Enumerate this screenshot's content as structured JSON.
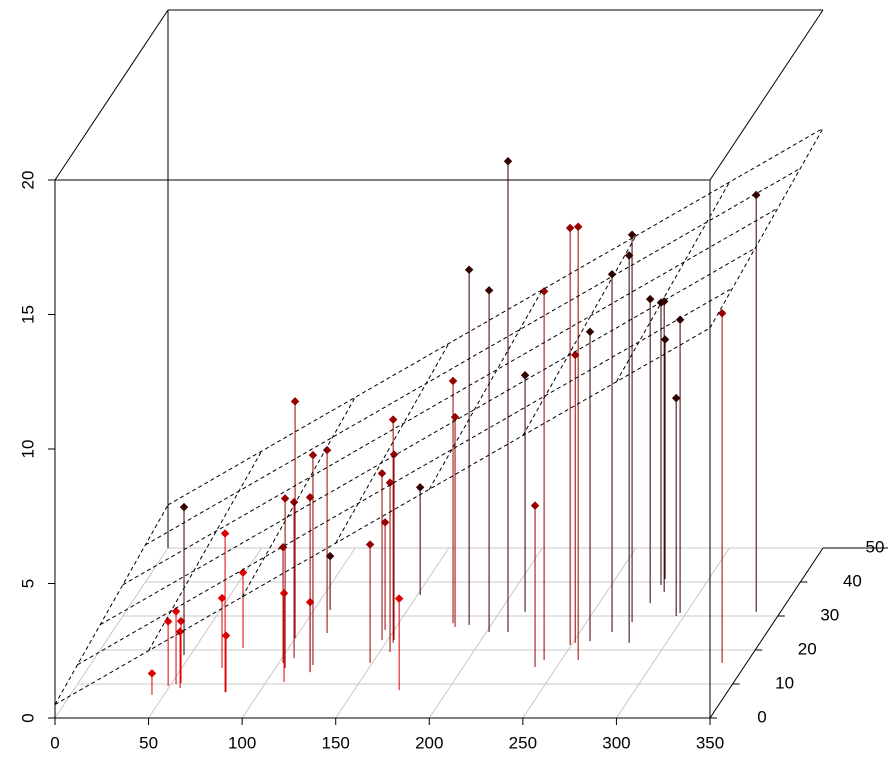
{
  "chart_data": {
    "type": "scatter3d",
    "x": [
      43.6,
      49.1,
      52.6,
      54.9,
      56.2,
      46.6,
      71.5,
      81.7,
      82.2,
      75.6,
      102.3,
      109.6,
      105.2,
      106.5,
      99.9,
      120.0,
      120.0,
      119.0,
      115.2,
      108.6,
      148.8,
      147.1,
      145.1,
      155.6,
      154.0,
      153.5,
      174.0,
      151.4,
      179.0,
      181.4,
      188.2,
      201.4,
      211.5,
      213.5,
      238.4,
      240.7,
      249.3,
      251.3,
      258.9,
      258.6,
      267.1,
      280.1,
      274.3,
      277.2,
      276.6,
      280.7,
      276.6,
      295.7,
      296.7,
      336.9,
      337.0
    ],
    "y": [
      6.8,
      9.4,
      10.0,
      10.3,
      8.8,
      18.5,
      14.7,
      7.6,
      7.6,
      20.6,
      16.2,
      10.6,
      14.7,
      17.6,
      23.5,
      13.5,
      13.5,
      15.6,
      25.0,
      31.8,
      16.2,
      22.9,
      25.9,
      19.4,
      22.1,
      22.9,
      8.2,
      36.2,
      27.9,
      26.8,
      27.4,
      25.3,
      25.3,
      31.2,
      15.0,
      17.1,
      21.5,
      22.1,
      17.1,
      22.6,
      25.3,
      22.1,
      28.2,
      33.8,
      39.1,
      37.1,
      40.9,
      30.0,
      30.9,
      16.2,
      31.2
    ],
    "z": [
      0.8,
      2.4,
      2.7,
      2.3,
      2.1,
      5.5,
      2.6,
      5.9,
      2.1,
      2.8,
      4.3,
      3.3,
      6.3,
      5.8,
      8.8,
      2.6,
      6.5,
      7.8,
      6.8,
      2.0,
      4.4,
      6.2,
      4.0,
      6.3,
      8.3,
      6.9,
      3.4,
      4.0,
      9.0,
      7.8,
      13.2,
      12.7,
      17.5,
      8.8,
      6.0,
      13.7,
      15.5,
      10.7,
      16.1,
      11.5,
      13.3,
      14.4,
      14.4,
      11.3,
      10.5,
      10.8,
      8.9,
      8.1,
      10.9,
      13.0,
      15.5
    ],
    "colors": [
      "#dd0000",
      "#dd0000",
      "#dd0000",
      "#dd0000",
      "#dd0000",
      "#330000",
      "#dd0000",
      "#dd0000",
      "#dd0000",
      "#dd0000",
      "#990000",
      "#dd0000",
      "#990000",
      "#990000",
      "#990000",
      "#dd0000",
      "#990000",
      "#990000",
      "#990000",
      "#330000",
      "#990000",
      "#990000",
      "#990000",
      "#990000",
      "#990000",
      "#990000",
      "#dd0000",
      "#330000",
      "#990000",
      "#990000",
      "#330000",
      "#330000",
      "#330000",
      "#330000",
      "#990000",
      "#990000",
      "#990000",
      "#990000",
      "#990000",
      "#330000",
      "#330000",
      "#330000",
      "#330000",
      "#330000",
      "#330000",
      "#330000",
      "#330000",
      "#330000",
      "#330000",
      "#990000",
      "#330000"
    ],
    "xlim": [
      0,
      350
    ],
    "ylim": [
      0,
      50
    ],
    "zlim": [
      0,
      20
    ],
    "xticks": [
      0,
      50,
      100,
      150,
      200,
      250,
      300,
      350
    ],
    "yticks": [
      0,
      10,
      20,
      30,
      40,
      50
    ],
    "zticks": [
      0,
      5,
      10,
      15,
      20
    ],
    "grid": true,
    "plane": {
      "intercept": 0.5,
      "x_coef": 0.04,
      "y_coef": 0.022
    }
  }
}
